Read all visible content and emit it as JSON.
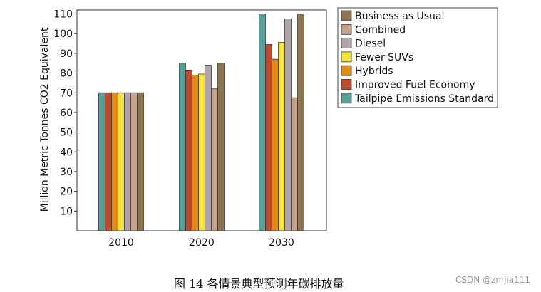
{
  "chart_data": {
    "type": "bar",
    "title": "",
    "xlabel": "",
    "ylabel": "Million Metric Tonnes CO2 Equivalent",
    "ylim": [
      0,
      112
    ],
    "yticks": [
      10,
      20,
      30,
      40,
      50,
      60,
      70,
      80,
      90,
      100,
      110
    ],
    "categories": [
      "2010",
      "2020",
      "2030"
    ],
    "legend_position": "right",
    "grid": false,
    "series": [
      {
        "name": "Tailpipe Emissions Standard",
        "color": "#5a9e99",
        "values": [
          70,
          85,
          110
        ]
      },
      {
        "name": "Improved Fuel Economy",
        "color": "#c04a2e",
        "values": [
          70,
          81.5,
          94.5
        ]
      },
      {
        "name": "Hybrids",
        "color": "#e58a10",
        "values": [
          70,
          79,
          87
        ]
      },
      {
        "name": "Fewer SUVs",
        "color": "#f6e23e",
        "values": [
          70,
          79.5,
          95.5
        ]
      },
      {
        "name": "Diesel",
        "color": "#b2a4ac",
        "values": [
          70,
          84,
          107.5
        ]
      },
      {
        "name": "Combined",
        "color": "#c6a48c",
        "values": [
          70,
          72,
          67.5
        ]
      },
      {
        "name": "Business as Usual",
        "color": "#8b7650",
        "values": [
          70,
          85,
          110
        ]
      }
    ],
    "legend_order": [
      "Business as Usual",
      "Combined",
      "Diesel",
      "Fewer SUVs",
      "Hybrids",
      "Improved Fuel Economy",
      "Tailpipe Emissions Standard"
    ]
  },
  "caption": "图 14  各情景典型预测年碳排放量",
  "watermark": "CSDN @zmjia111"
}
